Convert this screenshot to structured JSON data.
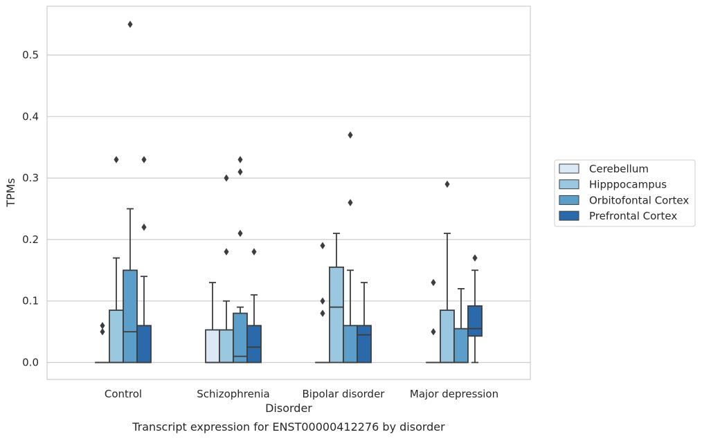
{
  "chart_data": {
    "type": "box",
    "title": "",
    "caption": "Transcript expression for ENST00000412276 by disorder",
    "xlabel": "Disorder",
    "ylabel": "TPMs",
    "ylim": [
      -0.027,
      0.582
    ],
    "yticks": [
      0.0,
      0.1,
      0.2,
      0.3,
      0.4,
      0.5
    ],
    "ytick_labels": [
      "0.0",
      "0.1",
      "0.2",
      "0.3",
      "0.4",
      "0.5"
    ],
    "grid": "horizontal",
    "legend_position": "right",
    "categories": [
      "Control",
      "Schizophrenia",
      "Bipolar disorder",
      "Major depression"
    ],
    "series": [
      {
        "name": "Cerebellum",
        "color": "#dbe9f6",
        "boxes": [
          {
            "q1": 0,
            "median": 0,
            "q3": 0,
            "whisker_low": 0,
            "whisker_high": 0,
            "outliers": []
          },
          {
            "q1": 0,
            "median": 0,
            "q3": 0.053,
            "whisker_low": 0,
            "whisker_high": 0.13,
            "outliers": []
          },
          {
            "q1": 0,
            "median": 0,
            "q3": 0,
            "whisker_low": 0,
            "whisker_high": 0,
            "outliers": []
          },
          {
            "q1": 0,
            "median": 0,
            "q3": 0,
            "whisker_low": 0,
            "whisker_high": 0,
            "outliers": []
          }
        ]
      },
      {
        "name": "Hipppocampus",
        "color": "#9ac8e0",
        "boxes": [
          {
            "q1": 0,
            "median": 0,
            "q3": 0.085,
            "whisker_low": 0,
            "whisker_high": 0.17,
            "outliers": [
              0.33
            ]
          },
          {
            "q1": 0,
            "median": 0,
            "q3": 0.053,
            "whisker_low": 0,
            "whisker_high": 0.1,
            "outliers": [
              0.18,
              0.3
            ]
          },
          {
            "q1": 0,
            "median": 0.09,
            "q3": 0.155,
            "whisker_low": 0,
            "whisker_high": 0.21,
            "outliers": []
          },
          {
            "q1": 0,
            "median": 0,
            "q3": 0.085,
            "whisker_low": 0,
            "whisker_high": 0.21,
            "outliers": [
              0.29
            ]
          }
        ]
      },
      {
        "name": "Orbitofontal Cortex",
        "color": "#5a9ec9",
        "boxes": [
          {
            "q1": 0,
            "median": 0.05,
            "q3": 0.15,
            "whisker_low": 0,
            "whisker_high": 0.25,
            "outliers": [
              0.55
            ]
          },
          {
            "q1": 0,
            "median": 0.01,
            "q3": 0.08,
            "whisker_low": 0,
            "whisker_high": 0.09,
            "outliers": [
              0.21,
              0.31,
              0.33
            ]
          },
          {
            "q1": 0,
            "median": 0,
            "q3": 0.06,
            "whisker_low": 0,
            "whisker_high": 0.15,
            "outliers": [
              0.26,
              0.37
            ]
          },
          {
            "q1": 0,
            "median": 0,
            "q3": 0.055,
            "whisker_low": 0,
            "whisker_high": 0.12,
            "outliers": []
          }
        ]
      },
      {
        "name": "Prefrontal Cortex",
        "color": "#2a69aa",
        "boxes": [
          {
            "q1": 0,
            "median": 0,
            "q3": 0.06,
            "whisker_low": 0,
            "whisker_high": 0.14,
            "outliers": [
              0.22,
              0.33
            ]
          },
          {
            "q1": 0,
            "median": 0.025,
            "q3": 0.06,
            "whisker_low": 0,
            "whisker_high": 0.11,
            "outliers": [
              0.18
            ]
          },
          {
            "q1": 0,
            "median": 0.045,
            "q3": 0.06,
            "whisker_low": 0,
            "whisker_high": 0.13,
            "outliers": []
          },
          {
            "q1": 0.043,
            "median": 0.055,
            "q3": 0.092,
            "whisker_low": 0,
            "whisker_high": 0.15,
            "outliers": [
              0.17
            ]
          }
        ]
      }
    ],
    "extra_outliers": [
      {
        "category": 0,
        "series": 0,
        "values": [
          0.05,
          0.06
        ]
      },
      {
        "category": 2,
        "series": 0,
        "values": [
          0.08,
          0.1,
          0.19
        ]
      },
      {
        "category": 3,
        "series": 0,
        "values": [
          0.05,
          0.13
        ]
      }
    ]
  }
}
